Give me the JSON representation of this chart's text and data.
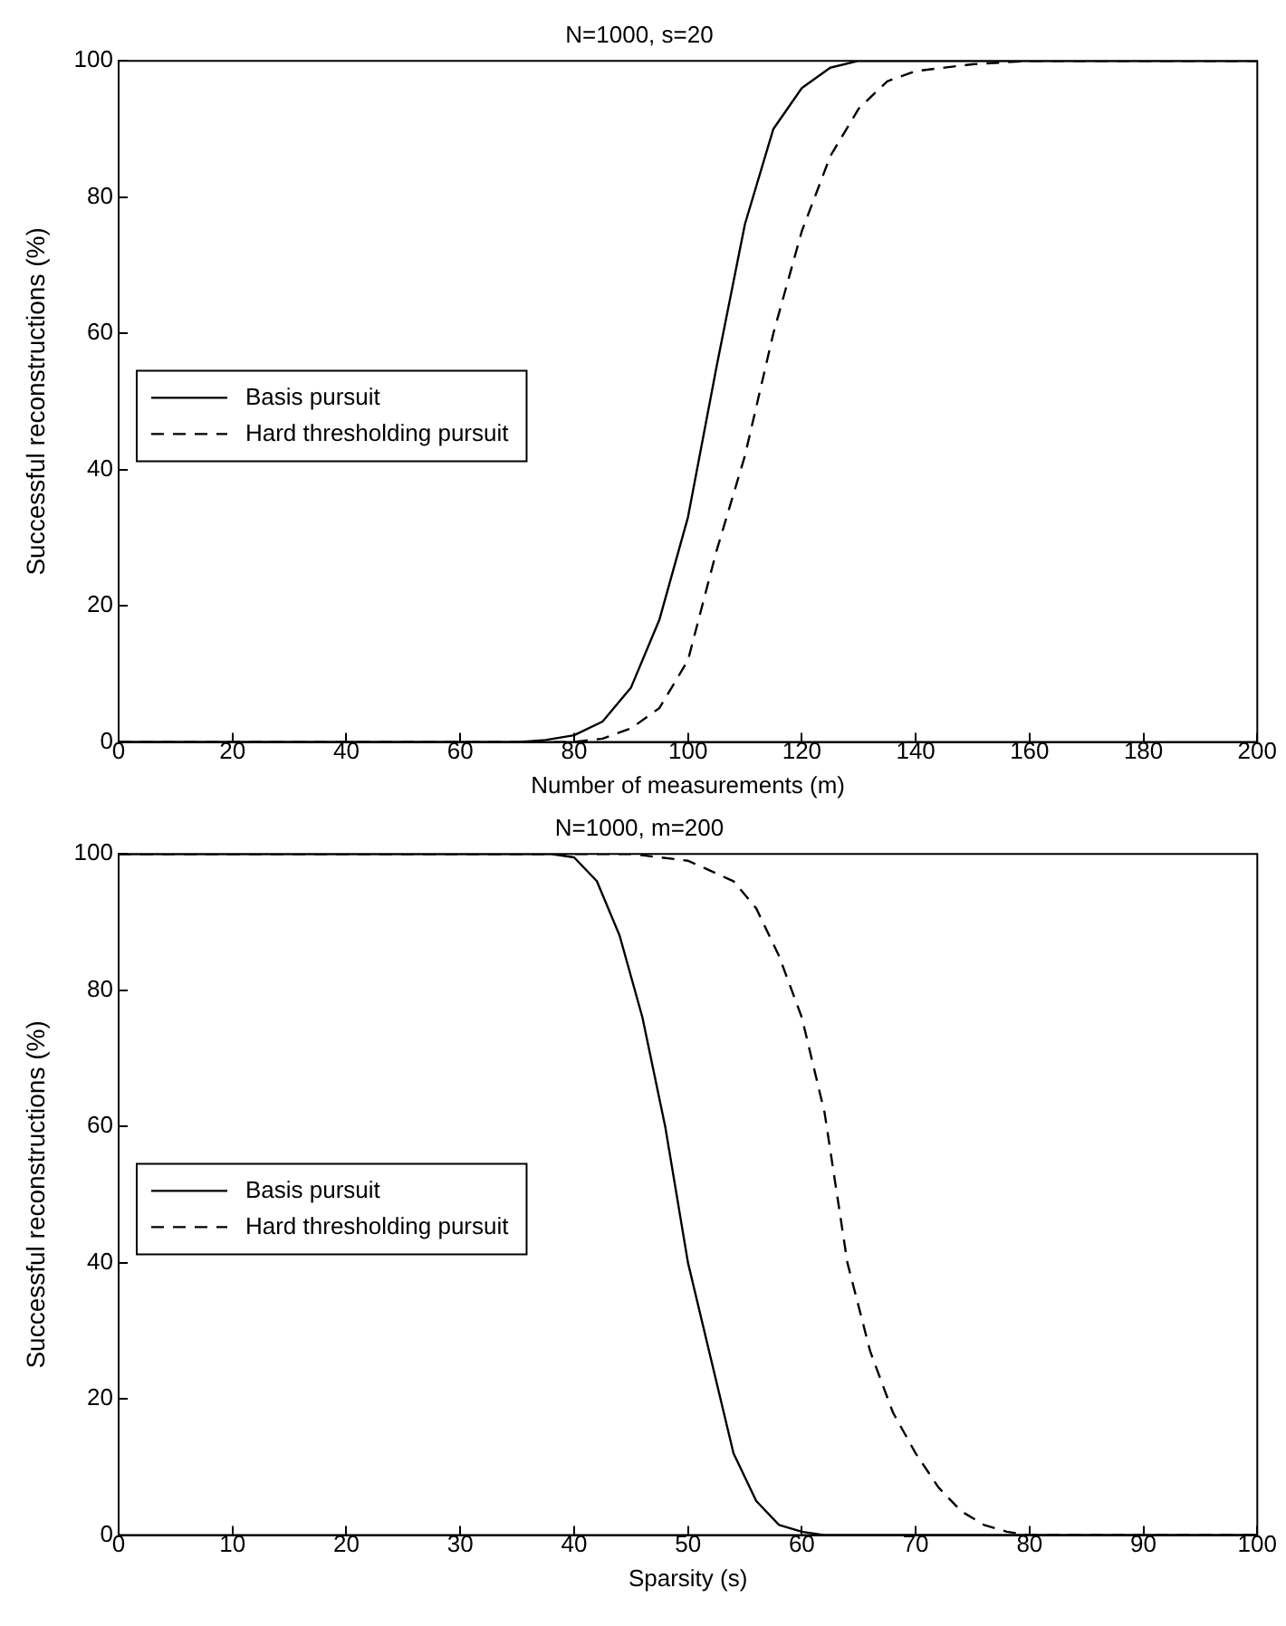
{
  "chart_data": [
    {
      "type": "line",
      "title": "N=1000, s=20",
      "xlabel": "Number of measurements (m)",
      "ylabel": "Successful reconstructions (%)",
      "xlim": [
        0,
        200
      ],
      "xticks": [
        0,
        20,
        40,
        60,
        80,
        100,
        120,
        140,
        160,
        180,
        200
      ],
      "ylim": [
        0,
        100
      ],
      "yticks": [
        0,
        20,
        40,
        60,
        80,
        100
      ],
      "legend": "left",
      "grid": false,
      "marker": "none",
      "series": [
        {
          "name": "Basis pursuit",
          "color": "#000000",
          "line_style": "solid",
          "x": [
            0,
            70,
            75,
            80,
            85,
            90,
            95,
            100,
            105,
            110,
            115,
            120,
            125,
            130,
            140,
            200
          ],
          "values": [
            0,
            0,
            0.3,
            1,
            3,
            8,
            18,
            33,
            55,
            76,
            90,
            96,
            99,
            100,
            100,
            100
          ]
        },
        {
          "name": "Hard thresholding pursuit",
          "color": "#000000",
          "line_style": "dashed",
          "x": [
            0,
            80,
            85,
            90,
            95,
            100,
            105,
            110,
            115,
            120,
            125,
            130,
            135,
            140,
            150,
            160,
            200
          ],
          "values": [
            0,
            0,
            0.5,
            2,
            5,
            12,
            28,
            42,
            60,
            75,
            86,
            93,
            97,
            98.5,
            99.5,
            100,
            100
          ]
        }
      ]
    },
    {
      "type": "line",
      "title": "N=1000, m=200",
      "xlabel": "Sparsity (s)",
      "ylabel": "Successful reconstructions (%)",
      "xlim": [
        0,
        100
      ],
      "xticks": [
        0,
        10,
        20,
        30,
        40,
        50,
        60,
        70,
        80,
        90,
        100
      ],
      "ylim": [
        0,
        100
      ],
      "yticks": [
        0,
        20,
        40,
        60,
        80,
        100
      ],
      "legend": "left",
      "grid": false,
      "marker": "none",
      "series": [
        {
          "name": "Basis pursuit",
          "color": "#000000",
          "line_style": "solid",
          "x": [
            0,
            38,
            40,
            42,
            44,
            46,
            48,
            50,
            52,
            54,
            56,
            58,
            60,
            62,
            100
          ],
          "values": [
            100,
            100,
            99.5,
            96,
            88,
            76,
            60,
            40,
            26,
            12,
            5,
            1.5,
            0.5,
            0,
            0
          ]
        },
        {
          "name": "Hard thresholding pursuit",
          "color": "#000000",
          "line_style": "dashed",
          "x": [
            0,
            45,
            50,
            54,
            56,
            58,
            60,
            62,
            64,
            66,
            68,
            70,
            72,
            74,
            76,
            78,
            80,
            100
          ],
          "values": [
            100,
            100,
            99,
            96,
            92,
            85,
            76,
            62,
            40,
            27,
            18,
            12,
            7,
            3.5,
            1.5,
            0.5,
            0,
            0
          ]
        }
      ]
    }
  ]
}
